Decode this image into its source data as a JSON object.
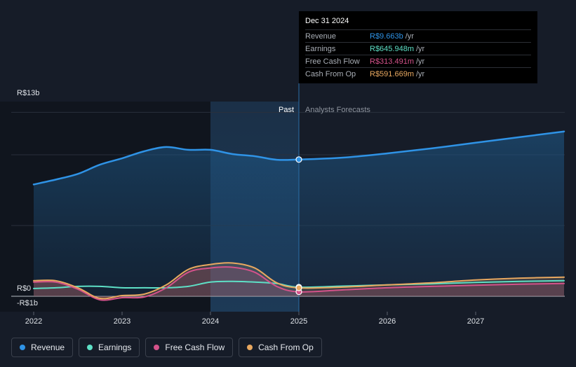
{
  "chart_data": {
    "type": "line",
    "x_ticks": [
      "2022",
      "2023",
      "2024",
      "2025",
      "2026",
      "2027"
    ],
    "y_labels": {
      "top": "R$13b",
      "zero": "R$0",
      "bottom": "-R$1b"
    },
    "ylim": [
      -1,
      13
    ],
    "past_label": "Past",
    "forecast_label": "Analysts Forecasts",
    "highlight_range": [
      2024.0,
      2025.0
    ],
    "divider_x": 2025.0,
    "series": [
      {
        "name": "Revenue",
        "color": "#2f93e6",
        "points": [
          [
            2022.0,
            7.9
          ],
          [
            2022.25,
            8.25
          ],
          [
            2022.5,
            8.65
          ],
          [
            2022.75,
            9.3
          ],
          [
            2023.0,
            9.75
          ],
          [
            2023.25,
            10.25
          ],
          [
            2023.5,
            10.55
          ],
          [
            2023.75,
            10.35
          ],
          [
            2024.0,
            10.35
          ],
          [
            2024.25,
            10.05
          ],
          [
            2024.5,
            9.9
          ],
          [
            2024.75,
            9.65
          ],
          [
            2025.0,
            9.663
          ],
          [
            2025.5,
            9.8
          ],
          [
            2026.0,
            10.1
          ],
          [
            2026.5,
            10.45
          ],
          [
            2027.0,
            10.85
          ],
          [
            2027.5,
            11.25
          ],
          [
            2028.0,
            11.65
          ]
        ]
      },
      {
        "name": "Earnings",
        "color": "#5ee0c6",
        "points": [
          [
            2022.0,
            0.55
          ],
          [
            2022.25,
            0.6
          ],
          [
            2022.5,
            0.7
          ],
          [
            2022.75,
            0.7
          ],
          [
            2023.0,
            0.6
          ],
          [
            2023.25,
            0.6
          ],
          [
            2023.5,
            0.6
          ],
          [
            2023.75,
            0.7
          ],
          [
            2024.0,
            1.0
          ],
          [
            2024.25,
            1.05
          ],
          [
            2024.5,
            1.0
          ],
          [
            2024.75,
            0.9
          ],
          [
            2025.0,
            0.645948
          ],
          [
            2025.5,
            0.72
          ],
          [
            2026.0,
            0.8
          ],
          [
            2026.5,
            0.88
          ],
          [
            2027.0,
            0.98
          ],
          [
            2027.5,
            1.05
          ],
          [
            2028.0,
            1.1
          ]
        ]
      },
      {
        "name": "Free Cash Flow",
        "color": "#d4528a",
        "points": [
          [
            2022.0,
            1.0
          ],
          [
            2022.25,
            1.0
          ],
          [
            2022.5,
            0.5
          ],
          [
            2022.75,
            -0.25
          ],
          [
            2023.0,
            -0.1
          ],
          [
            2023.25,
            -0.05
          ],
          [
            2023.5,
            0.6
          ],
          [
            2023.75,
            1.7
          ],
          [
            2024.0,
            2.0
          ],
          [
            2024.25,
            2.05
          ],
          [
            2024.5,
            1.7
          ],
          [
            2024.75,
            0.7
          ],
          [
            2025.0,
            0.313491
          ],
          [
            2025.5,
            0.45
          ],
          [
            2026.0,
            0.6
          ],
          [
            2026.5,
            0.7
          ],
          [
            2027.0,
            0.78
          ],
          [
            2027.5,
            0.85
          ],
          [
            2028.0,
            0.9
          ]
        ]
      },
      {
        "name": "Cash From Op",
        "color": "#e8a860",
        "points": [
          [
            2022.0,
            1.1
          ],
          [
            2022.25,
            1.1
          ],
          [
            2022.5,
            0.6
          ],
          [
            2022.75,
            -0.15
          ],
          [
            2023.0,
            0.05
          ],
          [
            2023.25,
            0.15
          ],
          [
            2023.5,
            0.8
          ],
          [
            2023.75,
            1.9
          ],
          [
            2024.0,
            2.25
          ],
          [
            2024.25,
            2.35
          ],
          [
            2024.5,
            2.0
          ],
          [
            2024.75,
            0.95
          ],
          [
            2025.0,
            0.591669
          ],
          [
            2025.5,
            0.65
          ],
          [
            2026.0,
            0.8
          ],
          [
            2026.5,
            0.95
          ],
          [
            2027.0,
            1.15
          ],
          [
            2027.5,
            1.28
          ],
          [
            2028.0,
            1.35
          ]
        ]
      }
    ]
  },
  "tooltip": {
    "date": "Dec 31 2024",
    "rows": [
      {
        "label": "Revenue",
        "value": "R$9.663b",
        "unit": "/yr",
        "color": "#2f93e6"
      },
      {
        "label": "Earnings",
        "value": "R$645.948m",
        "unit": "/yr",
        "color": "#5ee0c6"
      },
      {
        "label": "Free Cash Flow",
        "value": "R$313.491m",
        "unit": "/yr",
        "color": "#d4528a"
      },
      {
        "label": "Cash From Op",
        "value": "R$591.669m",
        "unit": "/yr",
        "color": "#e8a860"
      }
    ]
  },
  "legend": [
    {
      "label": "Revenue",
      "color": "#2f93e6"
    },
    {
      "label": "Earnings",
      "color": "#5ee0c6"
    },
    {
      "label": "Free Cash Flow",
      "color": "#d4528a"
    },
    {
      "label": "Cash From Op",
      "color": "#e8a860"
    }
  ]
}
